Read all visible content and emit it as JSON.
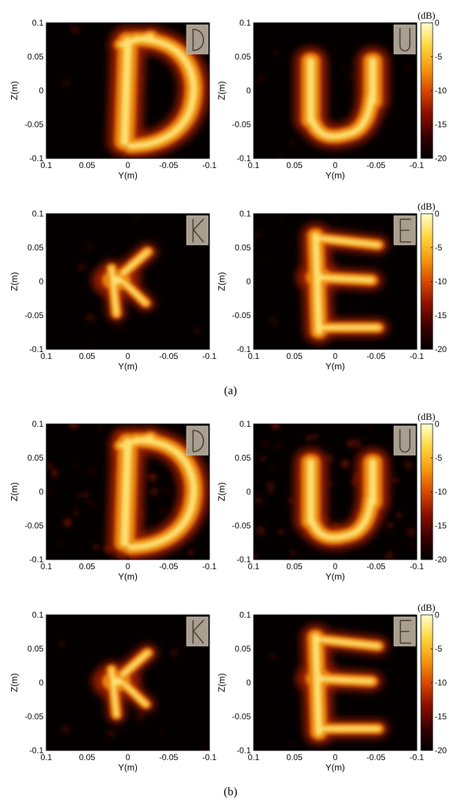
{
  "figure": {
    "captions": [
      "(a)",
      "(b)"
    ]
  },
  "colors": {
    "plot_background": "#050000",
    "colormap": [
      "#000000",
      "#3a0000",
      "#8a1000",
      "#d84a00",
      "#f59a10",
      "#ffd640",
      "#ffffcc"
    ],
    "inset_background": "#a99f90",
    "inset_stroke": "#4a3a28"
  },
  "chart_data": [
    {
      "group": "(a)",
      "type": "heatmap",
      "letter": "D",
      "xlabel": "Y(m)",
      "ylabel": "Z(m)",
      "xticks": [
        "0.1",
        "0.05",
        "0",
        "-0.05",
        "-0.1"
      ],
      "yticks": [
        "0.1",
        "0.05",
        "0",
        "-0.05",
        "-0.1"
      ],
      "xlim": [
        0.1,
        -0.1
      ],
      "ylim": [
        -0.1,
        0.1
      ],
      "noise": "low",
      "inset_icon": "letter-d-photo",
      "colorbar": null
    },
    {
      "group": "(a)",
      "type": "heatmap",
      "letter": "U",
      "xlabel": "Y(m)",
      "ylabel": "Z(m)",
      "xticks": [
        "0.1",
        "0.05",
        "0",
        "-0.05",
        "-0.1"
      ],
      "yticks": [
        "0.1",
        "0.05",
        "0",
        "-0.05",
        "-0.1"
      ],
      "xlim": [
        0.1,
        -0.1
      ],
      "ylim": [
        -0.1,
        0.1
      ],
      "noise": "low",
      "inset_icon": "letter-u-photo",
      "colorbar": {
        "title": "(dB)",
        "ticks": [
          "0",
          "-5",
          "-10",
          "-15",
          "-20"
        ],
        "range": [
          -20,
          0
        ]
      }
    },
    {
      "group": "(a)",
      "type": "heatmap",
      "letter": "K",
      "xlabel": "Y(m)",
      "ylabel": "Z(m)",
      "xticks": [
        "0.1",
        "0.05",
        "0",
        "-0.05",
        "-0.1"
      ],
      "yticks": [
        "0.1",
        "0.05",
        "0",
        "-0.05",
        "-0.1"
      ],
      "xlim": [
        0.1,
        -0.1
      ],
      "ylim": [
        -0.1,
        0.1
      ],
      "noise": "low",
      "inset_icon": "letter-k-photo",
      "colorbar": null
    },
    {
      "group": "(a)",
      "type": "heatmap",
      "letter": "E",
      "xlabel": "Y(m)",
      "ylabel": "Z(m)",
      "xticks": [
        "0.1",
        "0.05",
        "0",
        "-0.05",
        "-0.1"
      ],
      "yticks": [
        "0.1",
        "0.05",
        "0",
        "-0.05",
        "-0.1"
      ],
      "xlim": [
        0.1,
        -0.1
      ],
      "ylim": [
        -0.1,
        0.1
      ],
      "noise": "low",
      "inset_icon": "letter-e-photo",
      "colorbar": {
        "title": "(dB)",
        "ticks": [
          "0",
          "-5",
          "-10",
          "-15",
          "-20"
        ],
        "range": [
          -20,
          0
        ]
      }
    },
    {
      "group": "(b)",
      "type": "heatmap",
      "letter": "D",
      "xlabel": "Y(m)",
      "ylabel": "Z(m)",
      "xticks": [
        "0.1",
        "0.05",
        "0",
        "-0.05",
        "-0.1"
      ],
      "yticks": [
        "0.1",
        "0.05",
        "0",
        "-0.05",
        "-0.1"
      ],
      "xlim": [
        0.1,
        -0.1
      ],
      "ylim": [
        -0.1,
        0.1
      ],
      "noise": "high",
      "inset_icon": "letter-d-photo",
      "colorbar": null
    },
    {
      "group": "(b)",
      "type": "heatmap",
      "letter": "U",
      "xlabel": "Y(m)",
      "ylabel": "Z(m)",
      "xticks": [
        "0.1",
        "0.05",
        "0",
        "-0.05",
        "-0.1"
      ],
      "yticks": [
        "0.1",
        "0.05",
        "0",
        "-0.05",
        "-0.1"
      ],
      "xlim": [
        0.1,
        -0.1
      ],
      "ylim": [
        -0.1,
        0.1
      ],
      "noise": "high",
      "inset_icon": "letter-u-photo",
      "colorbar": {
        "title": "(dB)",
        "ticks": [
          "0",
          "-5",
          "-10",
          "-15",
          "-20"
        ],
        "range": [
          -20,
          0
        ]
      }
    },
    {
      "group": "(b)",
      "type": "heatmap",
      "letter": "K",
      "xlabel": "Y(m)",
      "ylabel": "Z(m)",
      "xticks": [
        "0.1",
        "0.05",
        "0",
        "-0.05",
        "-0.1"
      ],
      "yticks": [
        "0.1",
        "0.05",
        "0",
        "-0.05",
        "-0.1"
      ],
      "xlim": [
        0.1,
        -0.1
      ],
      "ylim": [
        -0.1,
        0.1
      ],
      "noise": "low",
      "inset_icon": "letter-k-photo",
      "colorbar": null
    },
    {
      "group": "(b)",
      "type": "heatmap",
      "letter": "E",
      "xlabel": "Y(m)",
      "ylabel": "Z(m)",
      "xticks": [
        "0.1",
        "0.05",
        "0",
        "-0.05",
        "-0.1"
      ],
      "yticks": [
        "0.1",
        "0.05",
        "0",
        "-0.05",
        "-0.1"
      ],
      "xlim": [
        0.1,
        -0.1
      ],
      "ylim": [
        -0.1,
        0.1
      ],
      "noise": "low",
      "inset_icon": "letter-e-photo",
      "colorbar": {
        "title": "(dB)",
        "ticks": [
          "0",
          "-5",
          "-10",
          "-15",
          "-20"
        ],
        "range": [
          -20,
          0
        ]
      }
    }
  ]
}
